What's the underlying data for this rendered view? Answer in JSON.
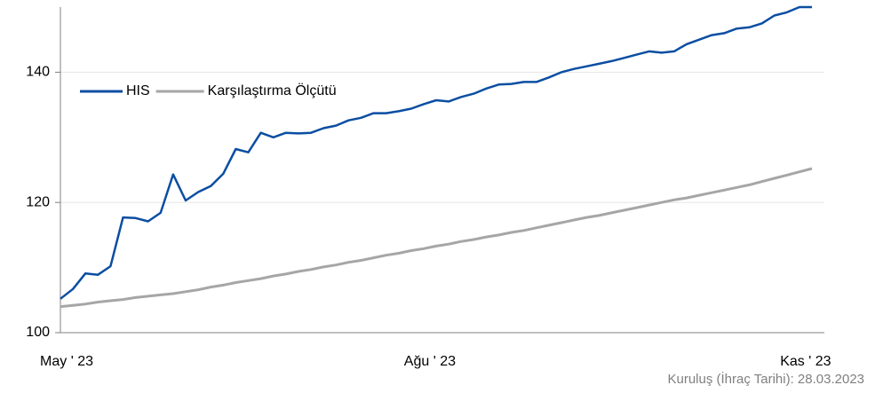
{
  "chart_data": {
    "type": "line",
    "categories": [
      "May ' 23",
      null,
      null,
      null,
      null,
      null,
      null,
      null,
      null,
      null,
      null,
      null,
      null,
      null,
      null,
      null,
      null,
      null,
      null,
      null,
      null,
      null,
      null,
      null,
      null,
      null,
      null,
      null,
      null,
      "Ağu ' 23",
      null,
      null,
      null,
      null,
      null,
      null,
      null,
      null,
      null,
      null,
      null,
      null,
      null,
      null,
      null,
      null,
      null,
      null,
      null,
      null,
      null,
      null,
      null,
      null,
      null,
      null,
      null,
      null,
      null,
      "Kas ' 23",
      null
    ],
    "series": [
      {
        "name": "HIS",
        "color": "#0b4ea2",
        "values": [
          105.2,
          106.7,
          109.1,
          108.9,
          110.2,
          117.7,
          117.6,
          117.1,
          118.4,
          124.3,
          120.3,
          121.6,
          122.5,
          124.4,
          128.2,
          127.7,
          130.7,
          130.0,
          130.7,
          130.6,
          130.7,
          131.4,
          131.8,
          132.6,
          133.0,
          133.7,
          133.7,
          134.0,
          134.4,
          135.1,
          135.7,
          135.5,
          136.2,
          136.7,
          137.5,
          138.1,
          138.2,
          138.5,
          138.5,
          139.2,
          140.0,
          140.5,
          140.9,
          141.3,
          141.7,
          142.2,
          142.7,
          143.2,
          143.0,
          143.2,
          144.3,
          145.0,
          145.7,
          146.0,
          146.7,
          146.9,
          147.5,
          148.7,
          149.2,
          150.0,
          150.0
        ]
      },
      {
        "name": "Karşılaştırma Ölçütü",
        "color": "#a6a6a6",
        "values": [
          104.0,
          104.2,
          104.4,
          104.7,
          104.9,
          105.1,
          105.4,
          105.6,
          105.8,
          106.0,
          106.3,
          106.6,
          107.0,
          107.3,
          107.7,
          108.0,
          108.3,
          108.7,
          109.0,
          109.4,
          109.7,
          110.1,
          110.4,
          110.8,
          111.1,
          111.5,
          111.9,
          112.2,
          112.6,
          112.9,
          113.3,
          113.6,
          114.0,
          114.3,
          114.7,
          115.0,
          115.4,
          115.7,
          116.1,
          116.5,
          116.9,
          117.3,
          117.7,
          118.0,
          118.4,
          118.8,
          119.2,
          119.6,
          120.0,
          120.4,
          120.7,
          121.1,
          121.5,
          121.9,
          122.3,
          122.7,
          123.2,
          123.7,
          124.2,
          124.7,
          125.2
        ]
      }
    ],
    "ylim": [
      100,
      150
    ],
    "yticks": [
      100,
      120,
      140
    ],
    "grid": true,
    "annotation": "Kuruluş (İhraç Tarihi): 28.03.2023"
  }
}
